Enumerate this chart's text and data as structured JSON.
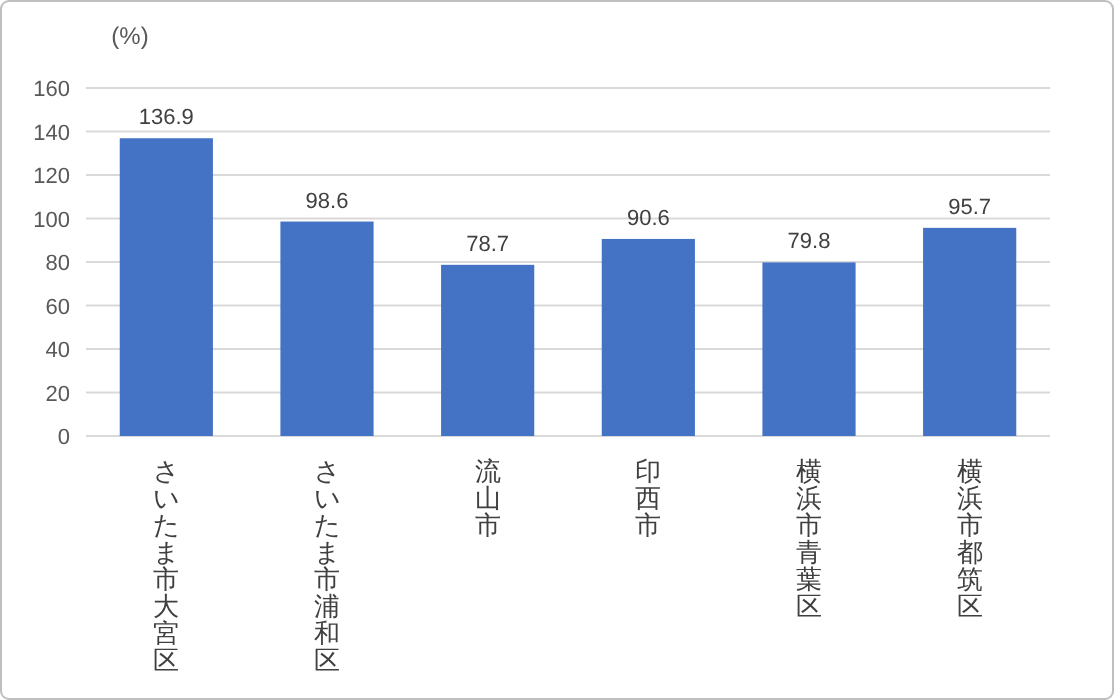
{
  "chart_data": {
    "type": "bar",
    "ylabel": "(%)",
    "categories": [
      "さいたま市大宮区",
      "さいたま市浦和区",
      "流山市",
      "印西市",
      "横浜市青葉区",
      "横浜市都筑区"
    ],
    "values": [
      136.9,
      98.6,
      78.7,
      90.6,
      79.8,
      95.7
    ],
    "color": "#4472c4",
    "ylim": [
      0,
      160
    ],
    "yticks": [
      0,
      20,
      40,
      60,
      80,
      100,
      120,
      140,
      160
    ],
    "grid": "y",
    "data_labels": true
  }
}
